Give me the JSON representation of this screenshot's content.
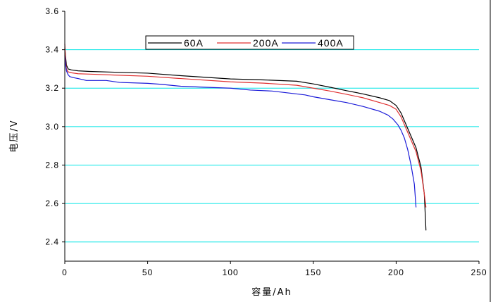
{
  "chart_data": {
    "type": "line",
    "title": "",
    "xlabel": "容量/Ah",
    "ylabel": "电压/V",
    "xlim": [
      0,
      250
    ],
    "ylim": [
      2.3,
      3.6
    ],
    "x_ticks": [
      "0",
      "50",
      "100",
      "150",
      "200",
      "250"
    ],
    "y_ticks": [
      "2.4",
      "2.6",
      "2.8",
      "3.0",
      "3.2",
      "3.4",
      "3.6"
    ],
    "grid": "horizontal",
    "grid_color": "#00e5e5",
    "legend_position": "top-center",
    "series": [
      {
        "name": "60A",
        "color": "#000000",
        "x": [
          0,
          0.5,
          1,
          2,
          4,
          8,
          15,
          30,
          50,
          70,
          100,
          120,
          140,
          150,
          160,
          170,
          180,
          190,
          196,
          200,
          203,
          206,
          209,
          212,
          215,
          217,
          218
        ],
        "y": [
          3.41,
          3.36,
          3.32,
          3.3,
          3.295,
          3.29,
          3.287,
          3.283,
          3.278,
          3.265,
          3.248,
          3.243,
          3.236,
          3.222,
          3.205,
          3.187,
          3.17,
          3.15,
          3.135,
          3.11,
          3.07,
          3.01,
          2.95,
          2.89,
          2.79,
          2.65,
          2.46
        ]
      },
      {
        "name": "200A",
        "color": "#e03030",
        "x": [
          0,
          0.5,
          1,
          2,
          4,
          8,
          15,
          30,
          50,
          70,
          100,
          120,
          140,
          150,
          160,
          170,
          180,
          190,
          196,
          200,
          203,
          206,
          209,
          212,
          215,
          217,
          218
        ],
        "y": [
          3.43,
          3.34,
          3.3,
          3.285,
          3.28,
          3.275,
          3.273,
          3.268,
          3.262,
          3.25,
          3.233,
          3.226,
          3.215,
          3.2,
          3.185,
          3.168,
          3.15,
          3.125,
          3.11,
          3.09,
          3.05,
          2.99,
          2.93,
          2.87,
          2.77,
          2.65,
          2.58
        ]
      },
      {
        "name": "400A",
        "color": "#1a1ad8",
        "x": [
          0,
          0.5,
          1,
          2,
          3,
          5,
          8,
          13,
          25,
          33,
          50,
          58,
          70,
          84,
          100,
          112,
          125,
          135,
          145,
          150,
          160,
          170,
          180,
          190,
          195,
          198,
          201,
          203,
          205,
          207,
          209,
          211,
          212
        ],
        "y": [
          3.37,
          3.32,
          3.29,
          3.27,
          3.26,
          3.255,
          3.25,
          3.24,
          3.24,
          3.23,
          3.225,
          3.22,
          3.21,
          3.205,
          3.2,
          3.19,
          3.185,
          3.175,
          3.165,
          3.155,
          3.14,
          3.125,
          3.105,
          3.08,
          3.06,
          3.04,
          3.01,
          2.98,
          2.94,
          2.88,
          2.8,
          2.7,
          2.58
        ]
      }
    ]
  }
}
